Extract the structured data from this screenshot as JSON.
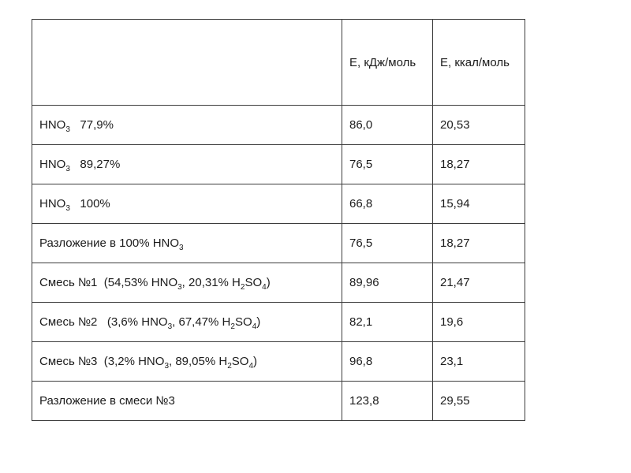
{
  "table": {
    "header": {
      "substance": "",
      "e_kj": "Е, кДж/моль",
      "e_kcal": "Е, ккал/моль"
    },
    "rows": [
      {
        "label": [
          {
            "text": "HNO"
          },
          {
            "text": "3",
            "sub": true
          },
          {
            "text": "   77,9%"
          }
        ],
        "e_kj": "86,0",
        "e_kcal": "20,53"
      },
      {
        "label": [
          {
            "text": "HNO"
          },
          {
            "text": "3",
            "sub": true
          },
          {
            "text": "   89,27%"
          }
        ],
        "e_kj": "76,5",
        "e_kcal": "18,27"
      },
      {
        "label": [
          {
            "text": "HNO"
          },
          {
            "text": "3",
            "sub": true
          },
          {
            "text": "   100%"
          }
        ],
        "e_kj": "66,8",
        "e_kcal": "15,94"
      },
      {
        "label": [
          {
            "text": "Разложение в 100% HNO"
          },
          {
            "text": "3",
            "sub": true
          }
        ],
        "e_kj": "76,5",
        "e_kcal": "18,27"
      },
      {
        "label": [
          {
            "text": "Смесь №1  (54,53% HNO"
          },
          {
            "text": "3",
            "sub": true
          },
          {
            "text": ", 20,31% H"
          },
          {
            "text": "2",
            "sub": true
          },
          {
            "text": "SO"
          },
          {
            "text": "4",
            "sub": true
          },
          {
            "text": ")"
          }
        ],
        "e_kj": "89,96",
        "e_kcal": "21,47"
      },
      {
        "label": [
          {
            "text": "Смесь №2   (3,6% HNO"
          },
          {
            "text": "3",
            "sub": true
          },
          {
            "text": ", 67,47% H"
          },
          {
            "text": "2",
            "sub": true
          },
          {
            "text": "SO"
          },
          {
            "text": "4",
            "sub": true
          },
          {
            "text": ")"
          }
        ],
        "e_kj": "82,1",
        "e_kcal": "19,6"
      },
      {
        "label": [
          {
            "text": "Смесь №3  (3,2% HNO"
          },
          {
            "text": "3",
            "sub": true
          },
          {
            "text": ", 89,05% H"
          },
          {
            "text": "2",
            "sub": true
          },
          {
            "text": "SO"
          },
          {
            "text": "4",
            "sub": true
          },
          {
            "text": ")"
          }
        ],
        "e_kj": "96,8",
        "e_kcal": "23,1"
      },
      {
        "label": [
          {
            "text": "Разложение в смеси №3"
          }
        ],
        "e_kj": "123,8",
        "e_kcal": "29,55"
      }
    ]
  }
}
